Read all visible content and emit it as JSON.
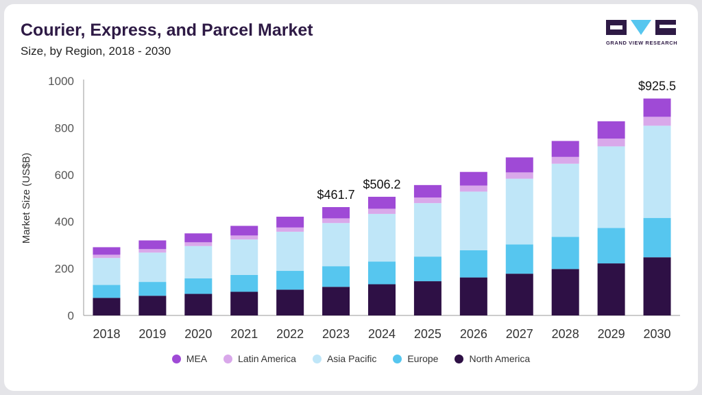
{
  "header": {
    "title": "Courier, Express, and Parcel Market",
    "subtitle": "Size, by Region, 2018 - 2030",
    "logo_text": "GRAND VIEW RESEARCH"
  },
  "colors": {
    "North America": "#2e1045",
    "Europe": "#56c6ef",
    "Asia Pacific": "#bfe6f8",
    "Latin America": "#d9a8ea",
    "MEA": "#9f4ad6"
  },
  "legend": [
    {
      "name": "MEA"
    },
    {
      "name": "Latin America"
    },
    {
      "name": "Asia Pacific"
    },
    {
      "name": "Europe"
    },
    {
      "name": "North America"
    }
  ],
  "chart_data": {
    "type": "bar",
    "stacked": true,
    "title": "Courier, Express, and Parcel Market",
    "subtitle": "Size, by Region, 2018 - 2030",
    "xlabel": "",
    "ylabel": "Market Size (US$B)",
    "ylim": [
      0,
      1000
    ],
    "yticks": [
      0,
      200,
      400,
      600,
      800,
      1000
    ],
    "grid": false,
    "legend_position": "bottom",
    "categories": [
      "2018",
      "2019",
      "2020",
      "2021",
      "2022",
      "2023",
      "2024",
      "2025",
      "2026",
      "2027",
      "2028",
      "2029",
      "2030"
    ],
    "series": [
      {
        "name": "North America",
        "values": [
          75,
          84,
          92,
          101,
          110,
          122,
          133,
          146,
          162,
          178,
          198,
          222,
          248
        ]
      },
      {
        "name": "Europe",
        "values": [
          55,
          59,
          66,
          72,
          80,
          88,
          97,
          105,
          116,
          125,
          137,
          151,
          168
        ]
      },
      {
        "name": "Asia Pacific",
        "values": [
          115,
          125,
          138,
          151,
          167,
          184,
          203,
          228,
          250,
          280,
          312,
          348,
          393
        ]
      },
      {
        "name": "Latin America",
        "values": [
          14,
          15,
          16,
          17,
          18,
          20,
          22,
          24,
          26,
          27,
          29,
          33,
          38
        ]
      },
      {
        "name": "MEA",
        "values": [
          32,
          37,
          38,
          41,
          46,
          48,
          51,
          53,
          58,
          64,
          68,
          74,
          78
        ]
      }
    ],
    "annotations": [
      {
        "category": "2023",
        "label": "$461.7",
        "value": 461.7
      },
      {
        "category": "2024",
        "label": "$506.2",
        "value": 506.2
      },
      {
        "category": "2030",
        "label": "$925.5",
        "value": 925.5
      }
    ]
  }
}
